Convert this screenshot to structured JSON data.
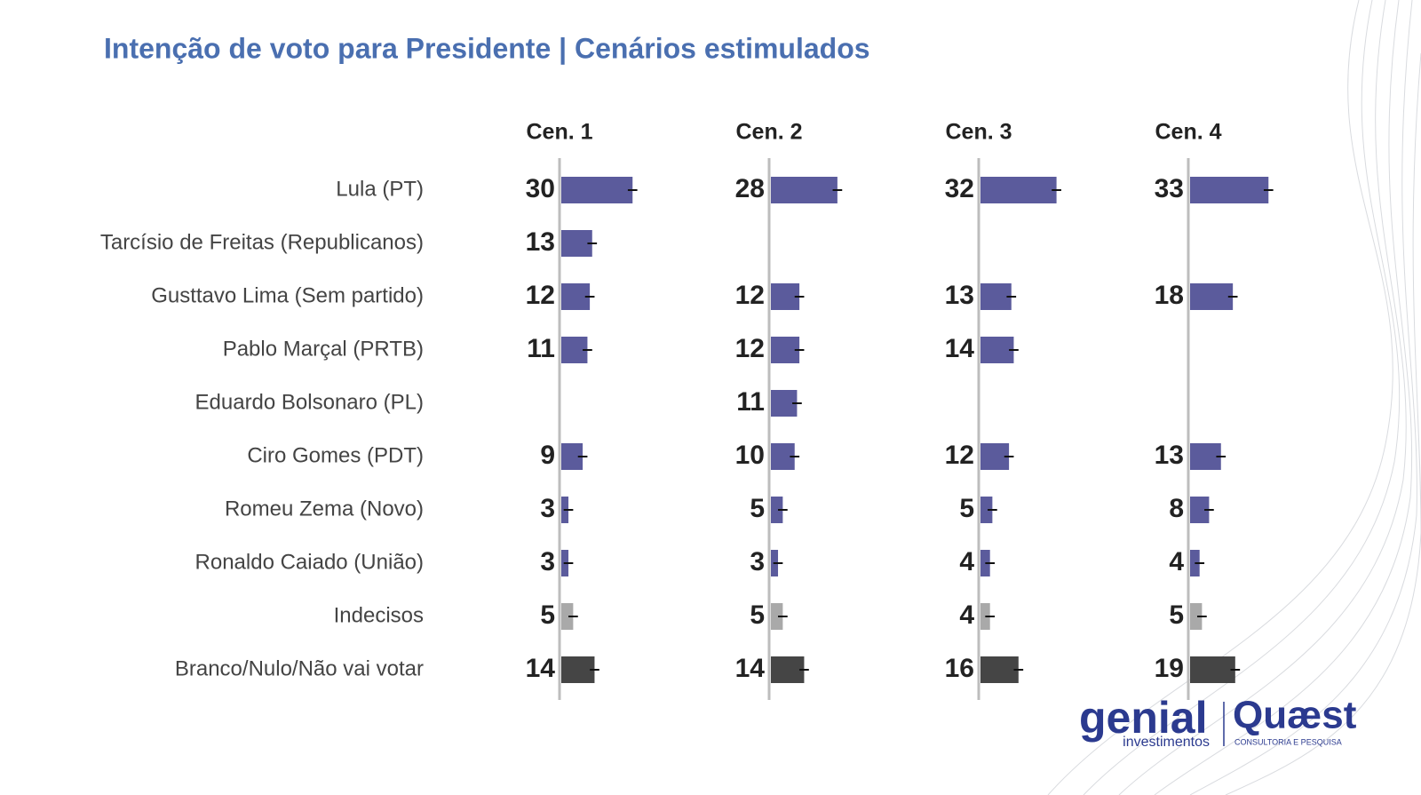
{
  "chart_data": {
    "type": "bar",
    "title": "Intenção de voto para Presidente | Cenários estimulados",
    "categories": [
      "Lula (PT)",
      "Tarcísio de Freitas (Republicanos)",
      "Gusttavo Lima (Sem partido)",
      "Pablo Marçal (PRTB)",
      "Eduardo Bolsonaro (PL)",
      "Ciro Gomes (PDT)",
      "Romeu Zema (Novo)",
      "Ronaldo Caiado (União)",
      "Indecisos",
      "Branco/Nulo/Não vai votar"
    ],
    "colors": [
      "#5b5b9c",
      "#5b5b9c",
      "#5b5b9c",
      "#5b5b9c",
      "#5b5b9c",
      "#5b5b9c",
      "#5b5b9c",
      "#5b5b9c",
      "#a9a9a9",
      "#454545"
    ],
    "series": [
      {
        "name": "Cen. 1",
        "values": [
          30,
          13,
          12,
          11,
          null,
          9,
          3,
          3,
          5,
          14
        ]
      },
      {
        "name": "Cen. 2",
        "values": [
          28,
          null,
          12,
          12,
          11,
          10,
          5,
          3,
          5,
          14
        ]
      },
      {
        "name": "Cen. 3",
        "values": [
          32,
          null,
          13,
          14,
          null,
          12,
          5,
          4,
          4,
          16
        ]
      },
      {
        "name": "Cen. 4",
        "values": [
          33,
          null,
          18,
          null,
          null,
          13,
          8,
          4,
          5,
          19
        ]
      }
    ],
    "error_margin": 2,
    "xlim": [
      0,
      40
    ],
    "logos": {
      "left": "genial",
      "left_sub": "investimentos",
      "right": "Quæst",
      "right_sub": "CONSULTORIA E PESQUISA"
    }
  }
}
